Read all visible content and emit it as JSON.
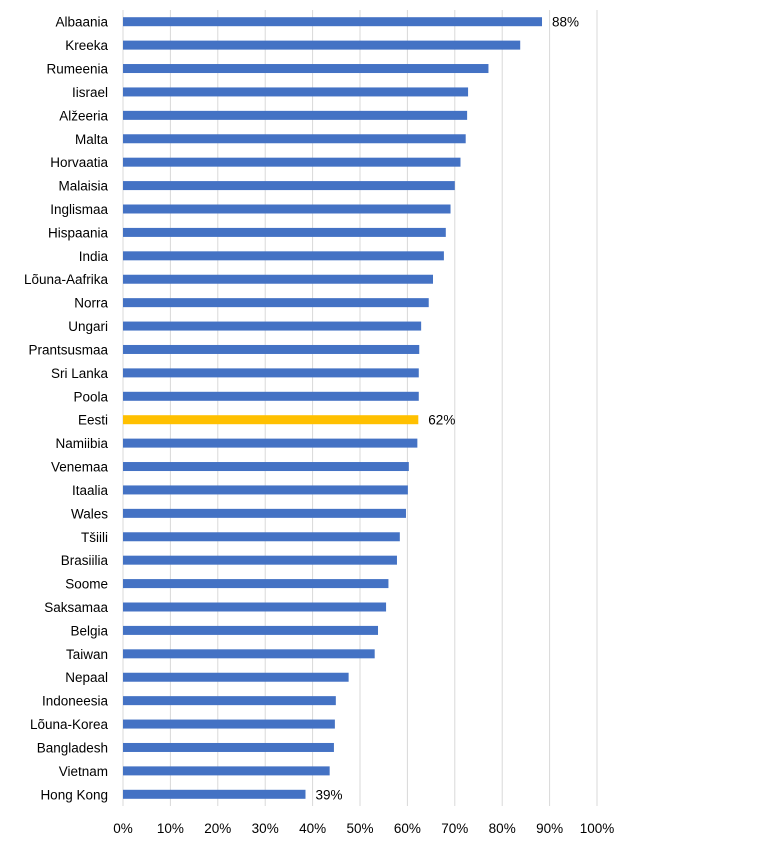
{
  "chart_data": {
    "type": "bar",
    "orientation": "horizontal",
    "categories": [
      "Albaania",
      "Kreeka",
      "Rumeenia",
      "Iisrael",
      "Alžeeria",
      "Malta",
      "Horvaatia",
      "Malaisia",
      "Inglismaa",
      "Hispaania",
      "India",
      "Lõuna-Aafrika",
      "Norra",
      "Ungari",
      "Prantsusmaa",
      "Sri Lanka",
      "Poola",
      "Eesti",
      "Namiibia",
      "Venemaa",
      "Itaalia",
      "Wales",
      "Tšiili",
      "Brasiilia",
      "Soome",
      "Saksamaa",
      "Belgia",
      "Taiwan",
      "Nepaal",
      "Indoneesia",
      "Lõuna-Korea",
      "Bangladesh",
      "Vietnam",
      "Hong Kong"
    ],
    "values": [
      88.4,
      83.8,
      77.1,
      72.8,
      72.6,
      72.3,
      71.2,
      70.0,
      69.1,
      68.1,
      67.7,
      65.4,
      64.5,
      62.9,
      62.5,
      62.4,
      62.4,
      62.3,
      62.1,
      60.3,
      60.1,
      59.7,
      58.4,
      57.8,
      56.0,
      55.5,
      53.8,
      53.1,
      47.6,
      44.9,
      44.7,
      44.5,
      43.6,
      38.5
    ],
    "data_labels": {
      "Albaania": "88%",
      "Eesti": "62%",
      "Hong Kong": "39%"
    },
    "highlight": "Eesti",
    "colors": {
      "bar": "#4472C4",
      "highlight": "#FFC000",
      "grid": "#D9D9D9"
    },
    "xlim": [
      0,
      100
    ],
    "x_ticks": [
      "0%",
      "10%",
      "20%",
      "30%",
      "40%",
      "50%",
      "60%",
      "70%",
      "80%",
      "90%",
      "100%"
    ],
    "grid": "vertical",
    "title": "",
    "xlabel": "",
    "ylabel": ""
  }
}
